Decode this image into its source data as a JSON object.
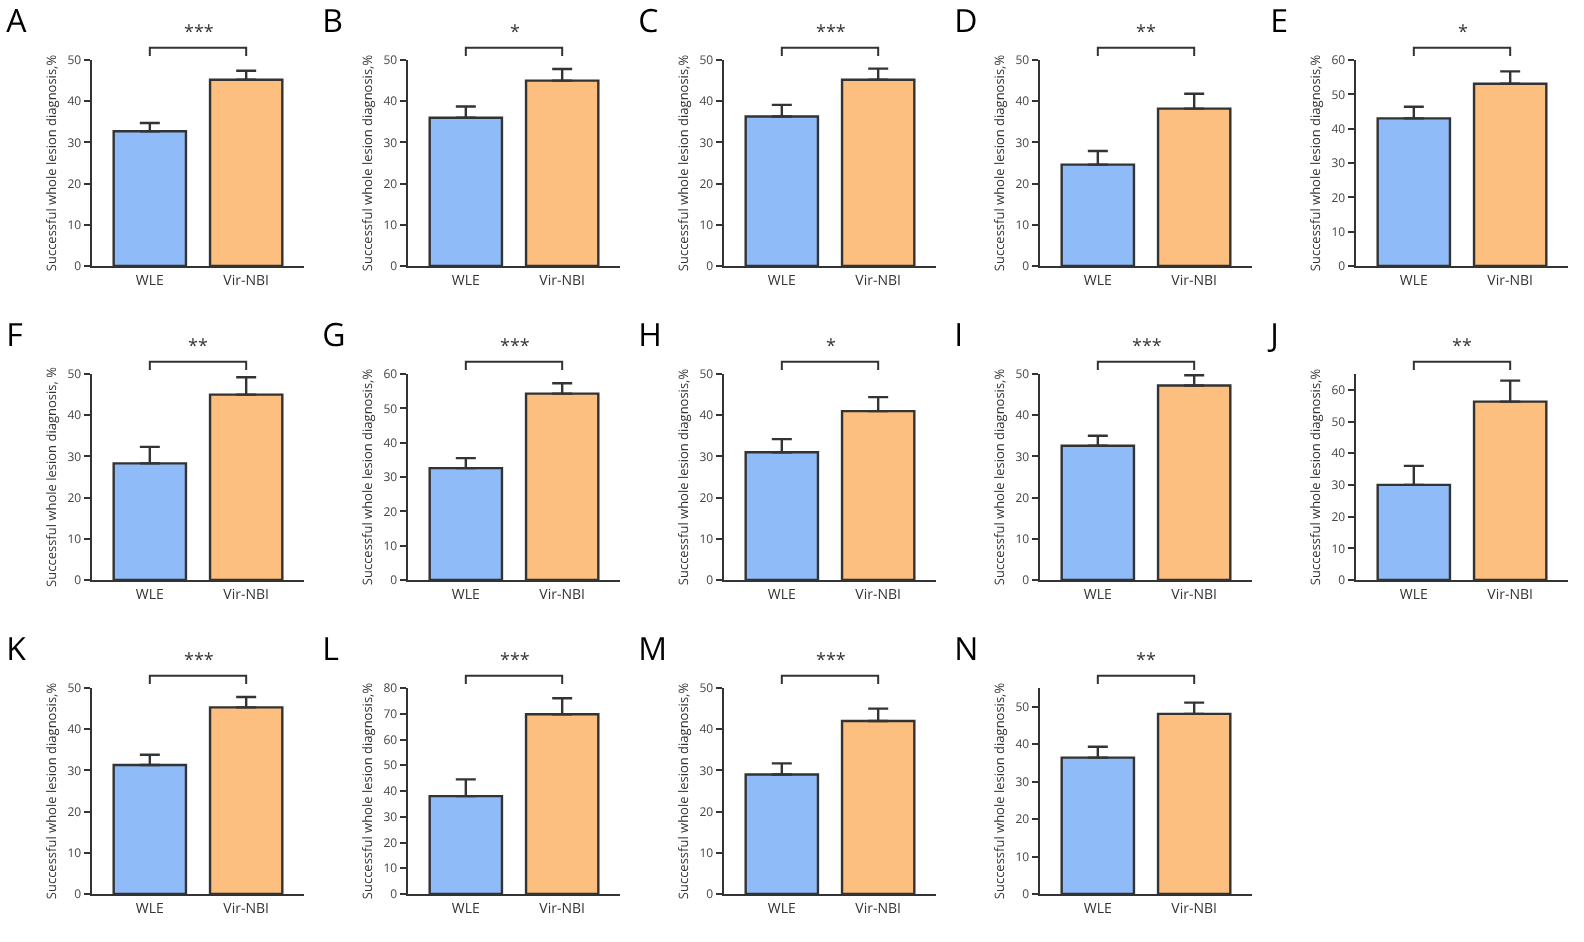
{
  "chart_data": [
    {
      "type": "bar",
      "title": "A",
      "ylabel": "Successful whole lesion diagnosis,%",
      "categories": [
        "WLE",
        "Vir-NBI"
      ],
      "values": [
        32.7,
        45.2
      ],
      "errors": [
        [
          32.7,
          34.7
        ],
        [
          45.2,
          47.4
        ]
      ],
      "colors": [
        "#8fbcf8",
        "#fdbf7f"
      ],
      "ylim": [
        0,
        50
      ],
      "yticks": [
        0,
        10,
        20,
        30,
        40,
        50
      ],
      "annotations": [
        "***"
      ]
    },
    {
      "type": "bar",
      "title": "B",
      "ylabel": "Successful whole lesion diagnosis,%",
      "categories": [
        "WLE",
        "Vir-NBI"
      ],
      "values": [
        36,
        45
      ],
      "errors": [
        [
          36,
          38.7
        ],
        [
          45,
          47.8
        ]
      ],
      "colors": [
        "#8fbcf8",
        "#fdbf7f"
      ],
      "ylim": [
        0,
        50
      ],
      "yticks": [
        0,
        10,
        20,
        30,
        40,
        50
      ],
      "annotations": [
        "*"
      ]
    },
    {
      "type": "bar",
      "title": "C",
      "ylabel": "Successful whole lesion diagnosis,%",
      "categories": [
        "WLE",
        "Vir-NBI"
      ],
      "values": [
        36.3,
        45.2
      ],
      "errors": [
        [
          36.3,
          39.1
        ],
        [
          45.2,
          47.9
        ]
      ],
      "colors": [
        "#8fbcf8",
        "#fdbf7f"
      ],
      "ylim": [
        0,
        50
      ],
      "yticks": [
        0,
        10,
        20,
        30,
        40,
        50
      ],
      "annotations": [
        "***"
      ]
    },
    {
      "type": "bar",
      "title": "D",
      "ylabel": "Successful whole lesion diagnosis,%",
      "categories": [
        "WLE",
        "Vir-NBI"
      ],
      "values": [
        24.6,
        38.2
      ],
      "errors": [
        [
          24.6,
          27.9
        ],
        [
          38.2,
          41.8
        ]
      ],
      "colors": [
        "#8fbcf8",
        "#fdbf7f"
      ],
      "ylim": [
        0,
        50
      ],
      "yticks": [
        0,
        10,
        20,
        30,
        40,
        50
      ],
      "annotations": [
        "**"
      ]
    },
    {
      "type": "bar",
      "title": "E",
      "ylabel": "Successful whole lesion diagnosis,%",
      "categories": [
        "WLE",
        "Vir-NBI"
      ],
      "values": [
        43,
        53.1
      ],
      "errors": [
        [
          43,
          46.4
        ],
        [
          53.1,
          56.7
        ]
      ],
      "colors": [
        "#8fbcf8",
        "#fdbf7f"
      ],
      "ylim": [
        0,
        60
      ],
      "yticks": [
        0,
        10,
        20,
        30,
        40,
        50,
        60
      ],
      "annotations": [
        "*"
      ]
    },
    {
      "type": "bar",
      "title": "F",
      "ylabel": "Successful whole lesion diagnosis, %",
      "categories": [
        "WLE",
        "Vir-NBI"
      ],
      "values": [
        28.3,
        45
      ],
      "errors": [
        [
          28.3,
          32.3
        ],
        [
          45,
          49.2
        ]
      ],
      "colors": [
        "#8fbcf8",
        "#fdbf7f"
      ],
      "ylim": [
        0,
        50
      ],
      "yticks": [
        0,
        10,
        20,
        30,
        40,
        50
      ],
      "annotations": [
        "**"
      ]
    },
    {
      "type": "bar",
      "title": "G",
      "ylabel": "Successful whole lesion diagnosis,%",
      "categories": [
        "WLE",
        "Vir-NBI"
      ],
      "values": [
        32.6,
        54.3
      ],
      "errors": [
        [
          32.6,
          35.5
        ],
        [
          54.3,
          57.3
        ]
      ],
      "colors": [
        "#8fbcf8",
        "#fdbf7f"
      ],
      "ylim": [
        0,
        60
      ],
      "yticks": [
        0,
        10,
        20,
        30,
        40,
        50,
        60
      ],
      "annotations": [
        "***"
      ]
    },
    {
      "type": "bar",
      "title": "H",
      "ylabel": "Successful whole lesion diagnosis,%",
      "categories": [
        "WLE",
        "Vir-NBI"
      ],
      "values": [
        31,
        41
      ],
      "errors": [
        [
          31,
          34.2
        ],
        [
          41,
          44.4
        ]
      ],
      "colors": [
        "#8fbcf8",
        "#fdbf7f"
      ],
      "ylim": [
        0,
        50
      ],
      "yticks": [
        0,
        10,
        20,
        30,
        40,
        50
      ],
      "annotations": [
        "*"
      ]
    },
    {
      "type": "bar",
      "title": "I",
      "ylabel": "Successful whole lesion diagnosis,%",
      "categories": [
        "WLE",
        "Vir-NBI"
      ],
      "values": [
        32.6,
        47.2
      ],
      "errors": [
        [
          32.6,
          35
        ],
        [
          47.2,
          49.7
        ]
      ],
      "colors": [
        "#8fbcf8",
        "#fdbf7f"
      ],
      "ylim": [
        0,
        50
      ],
      "yticks": [
        0,
        10,
        20,
        30,
        40,
        50
      ],
      "annotations": [
        "***"
      ]
    },
    {
      "type": "bar",
      "title": "J",
      "ylabel": "Successful whole lesion diagnosis,%",
      "categories": [
        "WLE",
        "Vir-NBI"
      ],
      "values": [
        30,
        56.3
      ],
      "errors": [
        [
          30,
          36
        ],
        [
          56.3,
          62.9
        ]
      ],
      "colors": [
        "#8fbcf8",
        "#fdbf7f"
      ],
      "ylim": [
        0,
        65
      ],
      "yticks": [
        0,
        10,
        20,
        30,
        40,
        50,
        60
      ],
      "annotations": [
        "**"
      ]
    },
    {
      "type": "bar",
      "title": "K",
      "ylabel": "Successful whole lesion diagnosis,%",
      "categories": [
        "WLE",
        "Vir-NBI"
      ],
      "values": [
        31.3,
        45.3
      ],
      "errors": [
        [
          31.3,
          33.8
        ],
        [
          45.3,
          47.8
        ]
      ],
      "colors": [
        "#8fbcf8",
        "#fdbf7f"
      ],
      "ylim": [
        0,
        50
      ],
      "yticks": [
        0,
        10,
        20,
        30,
        40,
        50
      ],
      "annotations": [
        "***"
      ]
    },
    {
      "type": "bar",
      "title": "L",
      "ylabel": "Successful whole lesion diagnosis,%",
      "categories": [
        "WLE",
        "Vir-NBI"
      ],
      "values": [
        38,
        69.8
      ],
      "errors": [
        [
          38,
          44.5
        ],
        [
          69.8,
          76
        ]
      ],
      "colors": [
        "#8fbcf8",
        "#fdbf7f"
      ],
      "ylim": [
        0,
        80
      ],
      "yticks": [
        0,
        10,
        20,
        30,
        40,
        50,
        60,
        70,
        80
      ],
      "annotations": [
        "***"
      ]
    },
    {
      "type": "bar",
      "title": "M",
      "ylabel": "Successful whole lesion diagnosis,%",
      "categories": [
        "WLE",
        "Vir-NBI"
      ],
      "values": [
        29,
        42
      ],
      "errors": [
        [
          29,
          31.7
        ],
        [
          42,
          45
        ]
      ],
      "colors": [
        "#8fbcf8",
        "#fdbf7f"
      ],
      "ylim": [
        0,
        50
      ],
      "yticks": [
        0,
        10,
        20,
        30,
        40,
        50
      ],
      "annotations": [
        "***"
      ]
    },
    {
      "type": "bar",
      "title": "N",
      "ylabel": "Successful whole lesion diagnosis,%",
      "categories": [
        "WLE",
        "Vir-NBI"
      ],
      "values": [
        36.4,
        48.1
      ],
      "errors": [
        [
          36.4,
          39.3
        ],
        [
          48.1,
          51.1
        ]
      ],
      "colors": [
        "#8fbcf8",
        "#fdbf7f"
      ],
      "ylim": [
        0,
        55
      ],
      "yticks": [
        0,
        10,
        20,
        30,
        40,
        50
      ],
      "annotations": [
        "**"
      ]
    }
  ]
}
